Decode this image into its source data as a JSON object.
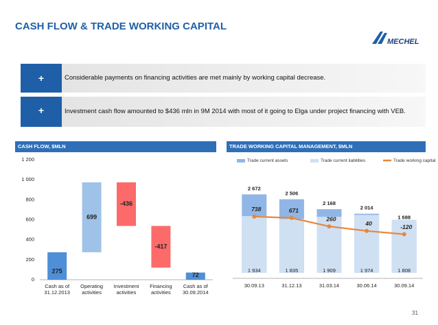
{
  "header": {
    "title": "CASH FLOW & TRADE WORKING CAPITAL",
    "logo": "MECHEL"
  },
  "bullets": [
    "Considerable payments on financing activities are met mainly by working capital decrease.",
    "Investment cash flow amounted to $436 mln in 9M 2014 with most of it going to Elga under project financing with VEB."
  ],
  "chart_data": [
    {
      "type": "waterfall",
      "title": "CASH FLOW, $MLN",
      "categories": [
        "Cash as of 31.12.2013",
        "Operating activities",
        "Investment activities",
        "Financing activities",
        "Cash as of 30.09.2014"
      ],
      "values": [
        275,
        699,
        -436,
        -417,
        72
      ],
      "total_color": "#4f8fd8",
      "increase_color": "#9fc2e8",
      "decrease_color": "#fc6a6a",
      "ylim": [
        0,
        1200
      ],
      "yticks": [
        0,
        200,
        400,
        600,
        800,
        {
          "value": 1000,
          "label": "1 000"
        },
        {
          "value": 1200,
          "label": "1 200"
        }
      ]
    },
    {
      "type": "stacked_bar_line",
      "title": "TRADE WORKING CAPITAL MANAGEMENT, $MLN",
      "categories": [
        "30.09.13",
        "31.12.13",
        "31.03.14",
        "30.06.14",
        "30.09.14"
      ],
      "ylim": [
        0,
        2800
      ],
      "y2lim": [
        -2000,
        2000
      ],
      "series": [
        {
          "name": "Trade current assets",
          "color": "#8fb6e6",
          "values": [
            2672,
            2506,
            2168,
            2014,
            1688
          ],
          "value_labels": [
            "2 672",
            "2 506",
            "2 168",
            "2 014",
            "1 688"
          ]
        },
        {
          "name": "Trade current liabilities",
          "color": "#cfe0f3",
          "values": [
            1934,
            1835,
            1909,
            1974,
            1808
          ],
          "value_labels": [
            "1 934",
            "1 835",
            "1 909",
            "1 974",
            "1 808"
          ]
        },
        {
          "name": "Trade working capital",
          "color": "#e8873a",
          "axis": "y2",
          "values": [
            738,
            671,
            260,
            40,
            -120
          ]
        }
      ]
    }
  ],
  "page_number": "31"
}
